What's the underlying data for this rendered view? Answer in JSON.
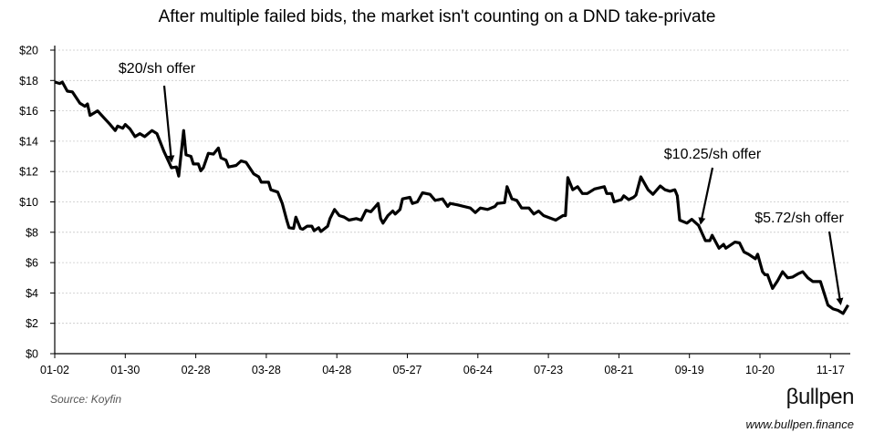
{
  "chart_data": {
    "type": "line",
    "title": "After multiple failed bids, the market isn't counting on a DND take-private",
    "xlabel": "",
    "ylabel": "",
    "ylim": [
      0,
      20
    ],
    "yticks": [
      0,
      2,
      4,
      6,
      8,
      10,
      12,
      14,
      16,
      18,
      20
    ],
    "ytick_labels": [
      "$0",
      "$2",
      "$4",
      "$6",
      "$8",
      "$10",
      "$12",
      "$14",
      "$16",
      "$18",
      "$20"
    ],
    "xticks": [
      "01-02",
      "01-30",
      "02-28",
      "03-28",
      "04-28",
      "05-27",
      "06-24",
      "07-23",
      "08-21",
      "09-19",
      "10-20",
      "11-17"
    ],
    "grid": "horizontal dotted",
    "line_color": "#000000",
    "series": [
      {
        "x": [
          "01-02",
          "01-04",
          "01-05",
          "01-07",
          "01-09",
          "01-12",
          "01-14",
          "01-15",
          "01-16",
          "01-19",
          "01-24",
          "01-26",
          "01-27",
          "01-29",
          "01-30",
          "02-01",
          "02-03",
          "02-05",
          "02-07",
          "02-10",
          "02-12",
          "02-15",
          "02-17",
          "02-18",
          "02-20",
          "02-21",
          "02-23",
          "02-24",
          "02-26",
          "02-27",
          "03-01",
          "03-02",
          "03-03",
          "03-05",
          "03-07",
          "03-09",
          "03-10",
          "03-12",
          "03-13",
          "03-16",
          "03-18",
          "03-20",
          "03-23",
          "03-25",
          "03-26",
          "03-29",
          "03-30",
          "04-02",
          "04-04",
          "04-06",
          "04-07",
          "04-09",
          "04-10",
          "04-12",
          "04-13",
          "04-15",
          "04-17",
          "04-18",
          "04-20",
          "04-21",
          "04-24",
          "04-25",
          "04-27",
          "04-29",
          "05-01",
          "05-03",
          "05-06",
          "05-08",
          "05-10",
          "05-12",
          "05-15",
          "05-16",
          "05-17",
          "05-19",
          "05-21",
          "05-22",
          "05-24",
          "05-25",
          "05-28",
          "05-29",
          "05-31",
          "06-02",
          "06-05",
          "06-07",
          "06-10",
          "06-12",
          "06-13",
          "06-16",
          "06-21",
          "06-23",
          "06-25",
          "06-28",
          "07-01",
          "07-02",
          "07-05",
          "07-06",
          "07-08",
          "07-10",
          "07-12",
          "07-15",
          "07-17",
          "07-19",
          "07-21",
          "07-26",
          "07-29",
          "07-30",
          "07-31",
          "08-02",
          "08-04",
          "08-06",
          "08-08",
          "08-11",
          "08-15",
          "08-16",
          "08-18",
          "08-19",
          "08-22",
          "08-23",
          "08-25",
          "08-27",
          "08-28",
          "08-30",
          "09-02",
          "09-04",
          "09-07",
          "09-09",
          "09-11",
          "09-13",
          "09-14",
          "09-15",
          "09-18",
          "09-20",
          "09-23",
          "09-26",
          "09-28",
          "09-29",
          "10-02",
          "10-04",
          "10-05",
          "10-09",
          "10-11",
          "10-13",
          "10-15",
          "10-18",
          "10-19",
          "10-21",
          "10-22",
          "10-23",
          "10-25",
          "10-27",
          "10-29",
          "10-31",
          "11-02",
          "11-04",
          "11-06",
          "11-08",
          "11-10",
          "11-13",
          "11-16",
          "11-18",
          "11-20",
          "11-22",
          "11-24"
        ],
        "values": [
          17.9,
          17.8,
          17.9,
          17.3,
          17.25,
          16.5,
          16.3,
          16.45,
          15.7,
          16.0,
          15.1,
          14.7,
          15.0,
          14.85,
          15.1,
          14.8,
          14.3,
          14.5,
          14.3,
          14.7,
          14.5,
          13.3,
          12.6,
          12.25,
          12.3,
          11.7,
          14.7,
          13.1,
          13.0,
          12.5,
          12.5,
          12.05,
          12.25,
          13.2,
          13.15,
          13.55,
          12.9,
          12.75,
          12.3,
          12.4,
          12.7,
          12.6,
          11.85,
          11.65,
          11.3,
          11.3,
          10.8,
          10.65,
          9.9,
          8.8,
          8.3,
          8.25,
          9.0,
          8.25,
          8.2,
          8.4,
          8.4,
          8.1,
          8.3,
          8.05,
          8.4,
          8.9,
          9.5,
          9.1,
          9.0,
          8.8,
          8.9,
          8.8,
          9.45,
          9.35,
          9.9,
          8.9,
          8.6,
          9.1,
          9.4,
          9.2,
          9.5,
          10.2,
          10.3,
          9.9,
          10.0,
          10.6,
          10.5,
          10.1,
          10.2,
          9.7,
          9.9,
          9.8,
          9.6,
          9.3,
          9.6,
          9.5,
          9.7,
          9.9,
          9.95,
          11.0,
          10.2,
          10.1,
          9.6,
          9.6,
          9.2,
          9.4,
          9.1,
          8.8,
          9.1,
          9.1,
          11.6,
          10.8,
          11.0,
          10.55,
          10.55,
          10.85,
          11.0,
          10.55,
          10.55,
          10.0,
          10.15,
          10.4,
          10.15,
          10.3,
          10.45,
          11.65,
          10.8,
          10.5,
          11.05,
          10.8,
          10.7,
          10.8,
          10.4,
          8.8,
          8.6,
          8.85,
          8.45,
          7.45,
          7.45,
          7.8,
          6.95,
          7.2,
          6.95,
          7.35,
          7.3,
          6.7,
          6.55,
          6.25,
          6.55,
          5.4,
          5.2,
          5.2,
          4.3,
          4.8,
          5.4,
          5.0,
          5.05,
          5.25,
          5.4,
          5.0,
          4.75,
          4.75,
          3.2,
          2.95,
          2.85,
          2.65,
          3.2
        ]
      }
    ],
    "annotations": [
      {
        "label": "$20/sh offer",
        "arrow_to_date": "02-18",
        "arrow_to_value": 12.7
      },
      {
        "label": "$10.25/sh offer",
        "arrow_to_date": "09-24",
        "arrow_to_value": 8.6
      },
      {
        "label": "$5.72/sh offer",
        "arrow_to_date": "11-21",
        "arrow_to_value": 3.3
      }
    ]
  },
  "footer": {
    "source": "Source: Koyfin",
    "logo_text": "βullpen",
    "url": "www.bullpen.finance"
  }
}
